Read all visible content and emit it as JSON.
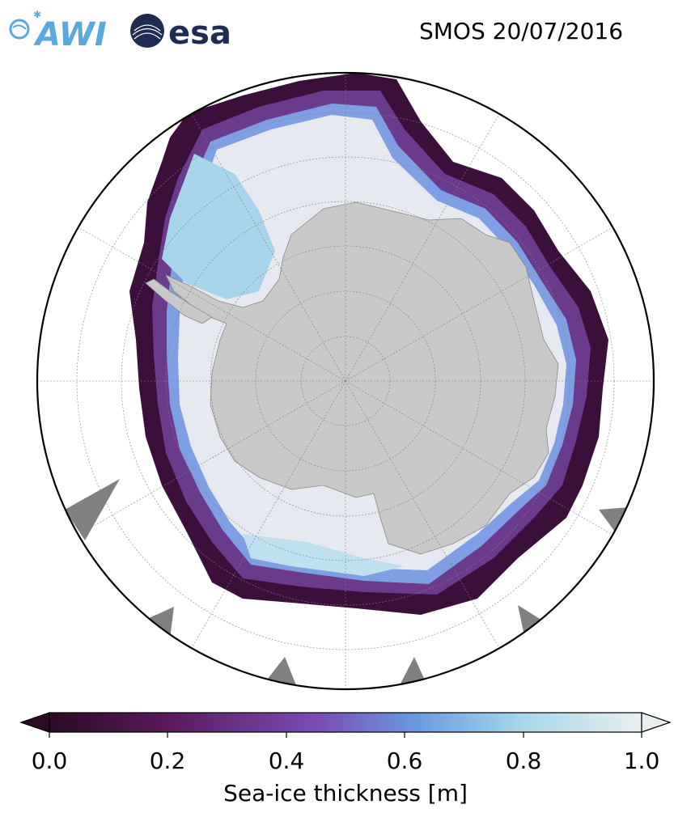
{
  "title": "SMOS 20/07/2016",
  "logos": {
    "awi": "AWI",
    "esa": "esa"
  },
  "map": {
    "projection": "south-polar-stereographic",
    "region": "Antarctica / Southern Ocean",
    "colors": {
      "land": "#c8c8c8",
      "no_data": "#808080",
      "ocean": "#ffffff",
      "thick_ice": "#e9e9ee"
    }
  },
  "colorbar": {
    "label": "Sea-ice thickness [m]",
    "ticks": [
      "0.0",
      "0.2",
      "0.4",
      "0.6",
      "0.8",
      "1.0"
    ],
    "range": [
      0.0,
      1.0
    ],
    "extend": "both",
    "colormap": [
      "#2a0a24",
      "#5a1a5c",
      "#7a4cb4",
      "#6a9ae0",
      "#a8d8ea",
      "#e8eef0"
    ]
  }
}
